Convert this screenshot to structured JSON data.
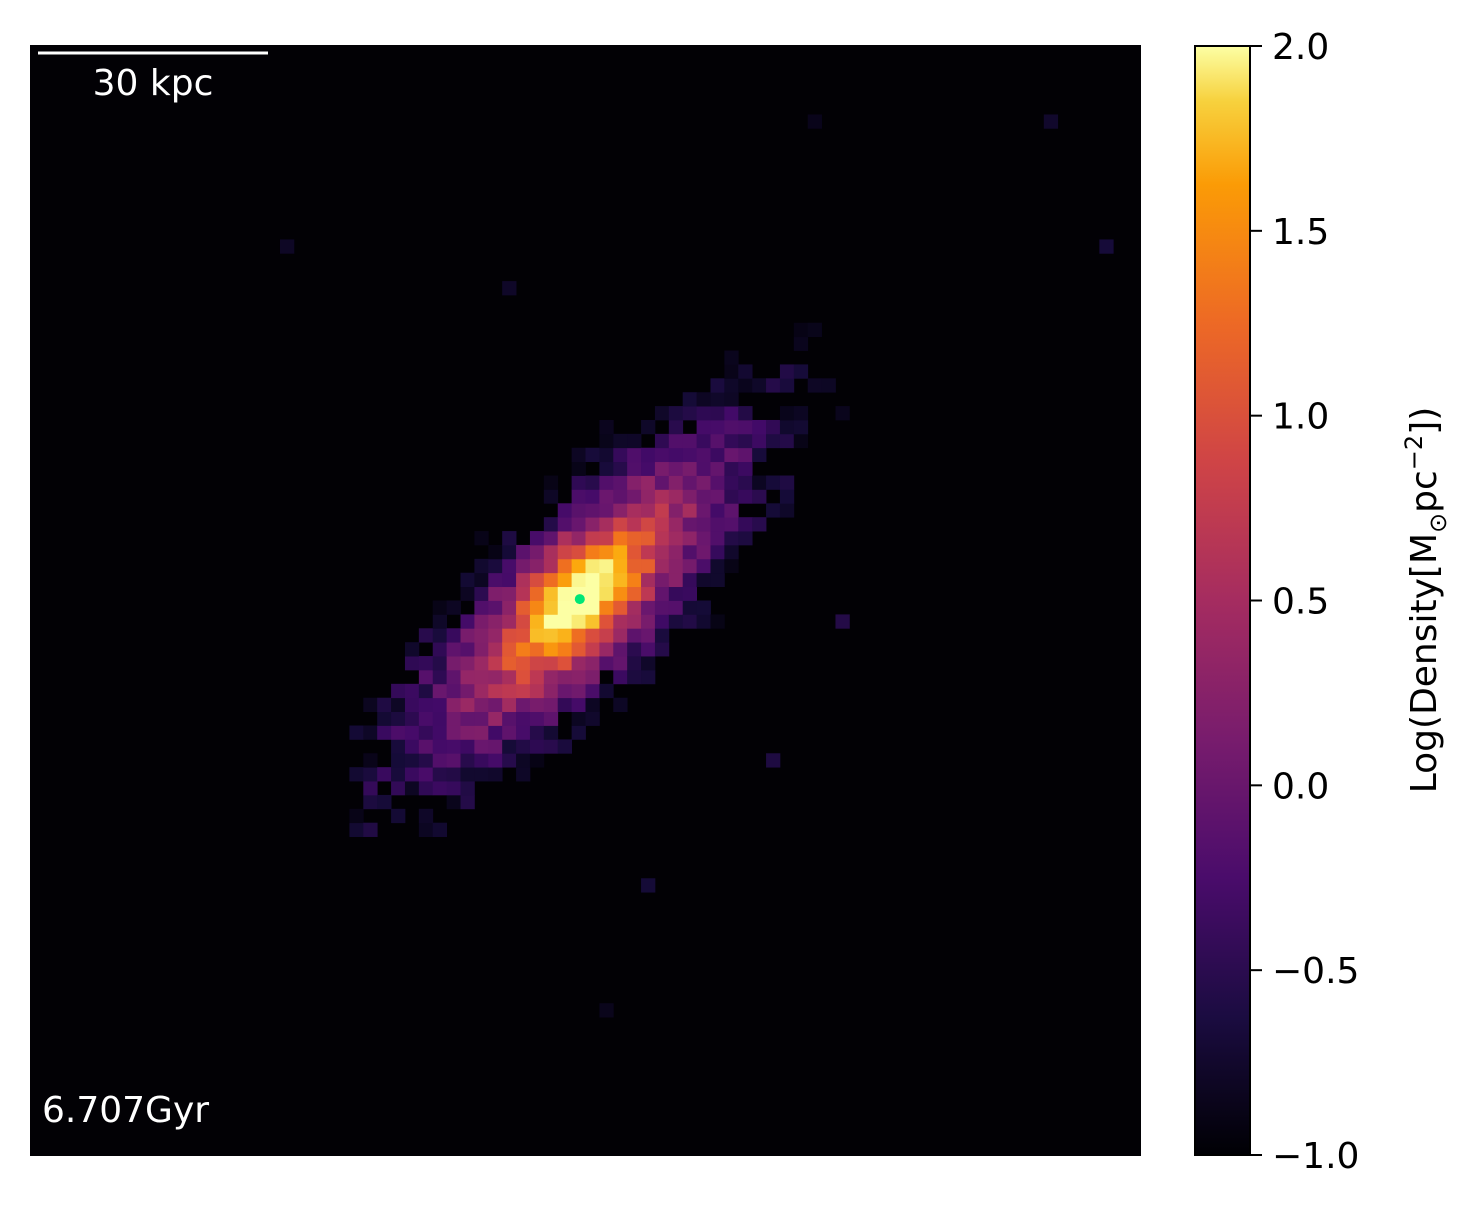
{
  "chart_data": {
    "type": "heatmap",
    "title": "",
    "colormap": "inferno",
    "background_color": "#020105",
    "center_marker_color": "#00e676",
    "scale_bar": {
      "label": "30 kpc",
      "length_kpc": 30,
      "color": "#ffffff"
    },
    "time_label": "6.707Gyr",
    "colorbar": {
      "label": "Log(Density[M",
      "label_sub": "⊙",
      "label_mid": "pc",
      "label_sup": "−2",
      "label_end": "])",
      "range": [
        -1.0,
        2.0
      ],
      "ticks": [
        "2.0",
        "1.5",
        "1.0",
        "0.5",
        "0.0",
        "−0.5",
        "−1.0"
      ],
      "tick_values": [
        2.0,
        1.5,
        1.0,
        0.5,
        0.0,
        -0.5,
        -1.0
      ]
    },
    "density_model": {
      "description_units": "log10 surface density in Msun/pc^2 versus projected position in kpc",
      "extent_kpc": [
        -78,
        78
      ],
      "center_kpc": [
        -0.8,
        0.2
      ],
      "position_angle_deg": 45,
      "peak_log_density": 2.0,
      "grid_bins": 80
    }
  }
}
